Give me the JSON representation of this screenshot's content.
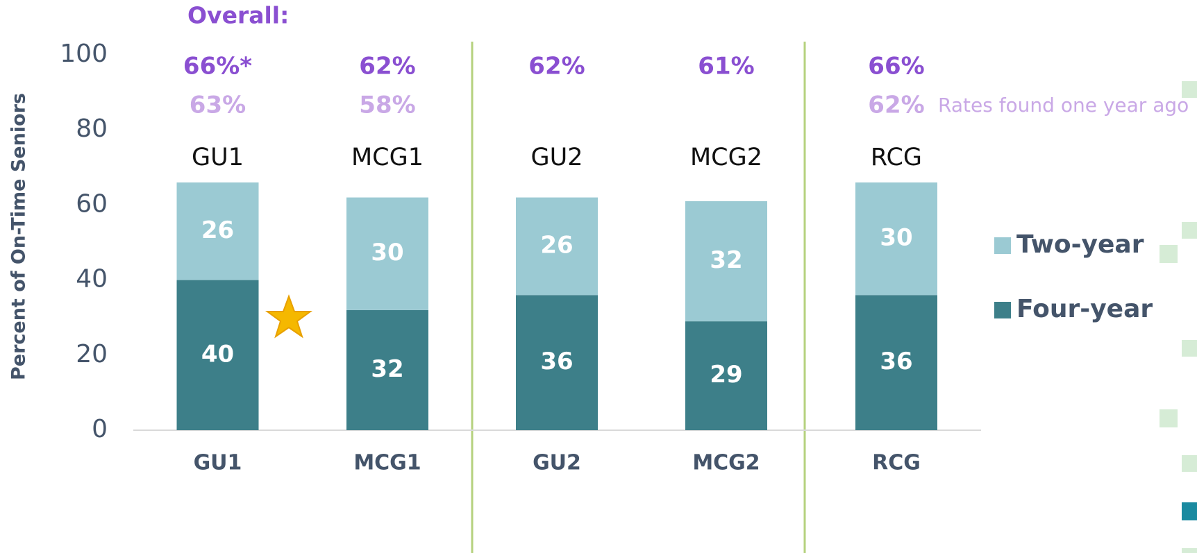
{
  "chart_data": {
    "type": "bar",
    "stacked": true,
    "title": "Overall:",
    "y_label": "Percent of On-Time Seniors",
    "categories": [
      "GU1",
      "MCG1",
      "GU2",
      "MCG2",
      "RCG"
    ],
    "series": [
      {
        "name": "Four-year",
        "color": "#3d7f89",
        "values": [
          40,
          32,
          36,
          29,
          36
        ]
      },
      {
        "name": "Two-year",
        "color": "#9bcad3",
        "values": [
          26,
          30,
          26,
          32,
          30
        ]
      }
    ],
    "overall_labels": [
      "66%*",
      "62%",
      "62%",
      "61%",
      "66%"
    ],
    "prior_labels": [
      "63%",
      "58%",
      null,
      null,
      "62%"
    ],
    "prior_note": "Rates found one year ago",
    "ylim": [
      0,
      100
    ],
    "yticks": [
      0,
      20,
      40,
      60,
      80,
      100
    ],
    "grid": false
  }
}
